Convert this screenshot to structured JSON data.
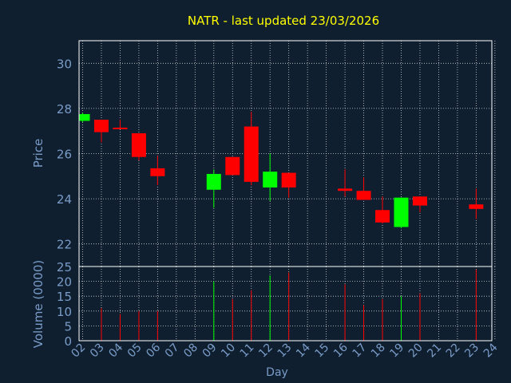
{
  "chart_data": {
    "type": "candlestick",
    "title": "NATR - last updated 23/03/2026",
    "ylabel": "Price",
    "volume_label": "Volume (0000)",
    "xlabel": "Day",
    "x_ticks": [
      "02",
      "03",
      "04",
      "05",
      "06",
      "07",
      "08",
      "09",
      "10",
      "11",
      "12",
      "13",
      "14",
      "15",
      "16",
      "17",
      "18",
      "19",
      "20",
      "21",
      "22",
      "23",
      "24"
    ],
    "price_ticks": [
      "22",
      "24",
      "26",
      "28",
      "30"
    ],
    "volume_ticks": [
      "0",
      "5",
      "10",
      "15",
      "20",
      "25"
    ],
    "price_range": [
      21.0,
      31.0
    ],
    "volume_range": [
      0,
      25
    ],
    "grid": true,
    "colors": {
      "background": "#0f1f2f",
      "up": "#00ff00",
      "down": "#ff0000",
      "title": "#ffff00",
      "axis_text": "#7a9cc8",
      "grid": "#ffffff",
      "frame": "#ffffff"
    },
    "candles": [
      {
        "day": 2,
        "open": 27.45,
        "high": 27.8,
        "low": 27.4,
        "close": 27.75,
        "volume": 0
      },
      {
        "day": 3,
        "open": 27.5,
        "high": 27.5,
        "low": 26.5,
        "close": 26.95,
        "volume": 11
      },
      {
        "day": 4,
        "open": 27.15,
        "high": 27.5,
        "low": 27.1,
        "close": 27.1,
        "volume": 9
      },
      {
        "day": 5,
        "open": 26.9,
        "high": 26.9,
        "low": 25.7,
        "close": 25.85,
        "volume": 10
      },
      {
        "day": 6,
        "open": 25.35,
        "high": 25.9,
        "low": 24.6,
        "close": 25.0,
        "volume": 10
      },
      {
        "day": 9,
        "open": 24.4,
        "high": 25.3,
        "low": 23.6,
        "close": 25.1,
        "volume": 20
      },
      {
        "day": 10,
        "open": 25.85,
        "high": 25.85,
        "low": 25.05,
        "close": 25.05,
        "volume": 14
      },
      {
        "day": 11,
        "open": 27.2,
        "high": 27.85,
        "low": 24.6,
        "close": 24.75,
        "volume": 17
      },
      {
        "day": 12,
        "open": 24.5,
        "high": 26.0,
        "low": 23.9,
        "close": 25.2,
        "volume": 22
      },
      {
        "day": 13,
        "open": 25.15,
        "high": 25.15,
        "low": 24.05,
        "close": 24.5,
        "volume": 23
      },
      {
        "day": 16,
        "open": 24.45,
        "high": 25.3,
        "low": 24.1,
        "close": 24.35,
        "volume": 19
      },
      {
        "day": 17,
        "open": 24.35,
        "high": 24.95,
        "low": 23.95,
        "close": 23.95,
        "volume": 12
      },
      {
        "day": 18,
        "open": 23.5,
        "high": 24.1,
        "low": 22.9,
        "close": 22.95,
        "volume": 14
      },
      {
        "day": 19,
        "open": 22.75,
        "high": 24.05,
        "low": 22.7,
        "close": 24.05,
        "volume": 15
      },
      {
        "day": 20,
        "open": 24.1,
        "high": 24.1,
        "low": 23.4,
        "close": 23.7,
        "volume": 16
      },
      {
        "day": 23,
        "open": 23.75,
        "high": 24.45,
        "low": 23.1,
        "close": 23.55,
        "volume": 24
      }
    ]
  }
}
